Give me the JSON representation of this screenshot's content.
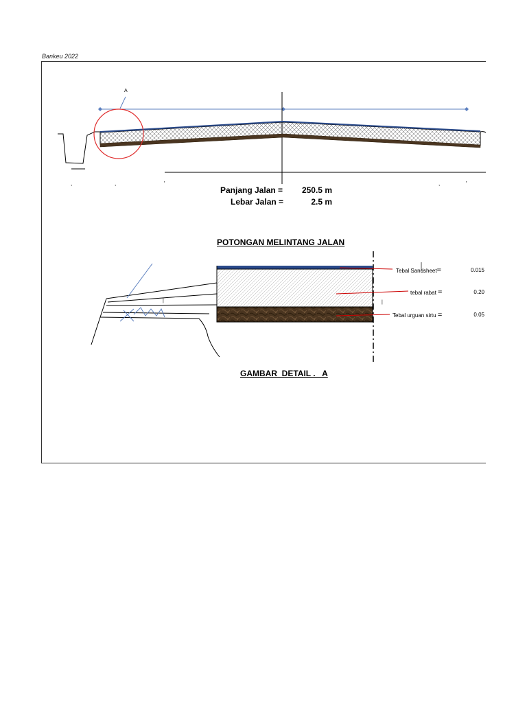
{
  "header": {
    "note": "Bankeu 2022"
  },
  "section": {
    "marker": "A",
    "length_label": "Panjang Jalan =",
    "length_value": "250.5 m",
    "width_label": "Lebar Jalan =",
    "width_value": "2.5 m",
    "title": "POTONGAN MELINTANG JALAN"
  },
  "detail": {
    "title": "GAMBAR  DETAIL .   A",
    "layers": [
      {
        "label": "Tebal Sandsheet",
        "eq": "=",
        "value": "0.015"
      },
      {
        "label": "tebal rabat",
        "eq": "=",
        "value": "0.20"
      },
      {
        "label": "Tebal urguan sirtu",
        "eq": "=",
        "value": "0.05"
      }
    ]
  },
  "colors": {
    "dimension_line": "#5b7fbf",
    "marker_circle": "#e03030",
    "leader": "#cc0000",
    "asphalt": "#2a4a8a",
    "soil": "#4a3520"
  }
}
